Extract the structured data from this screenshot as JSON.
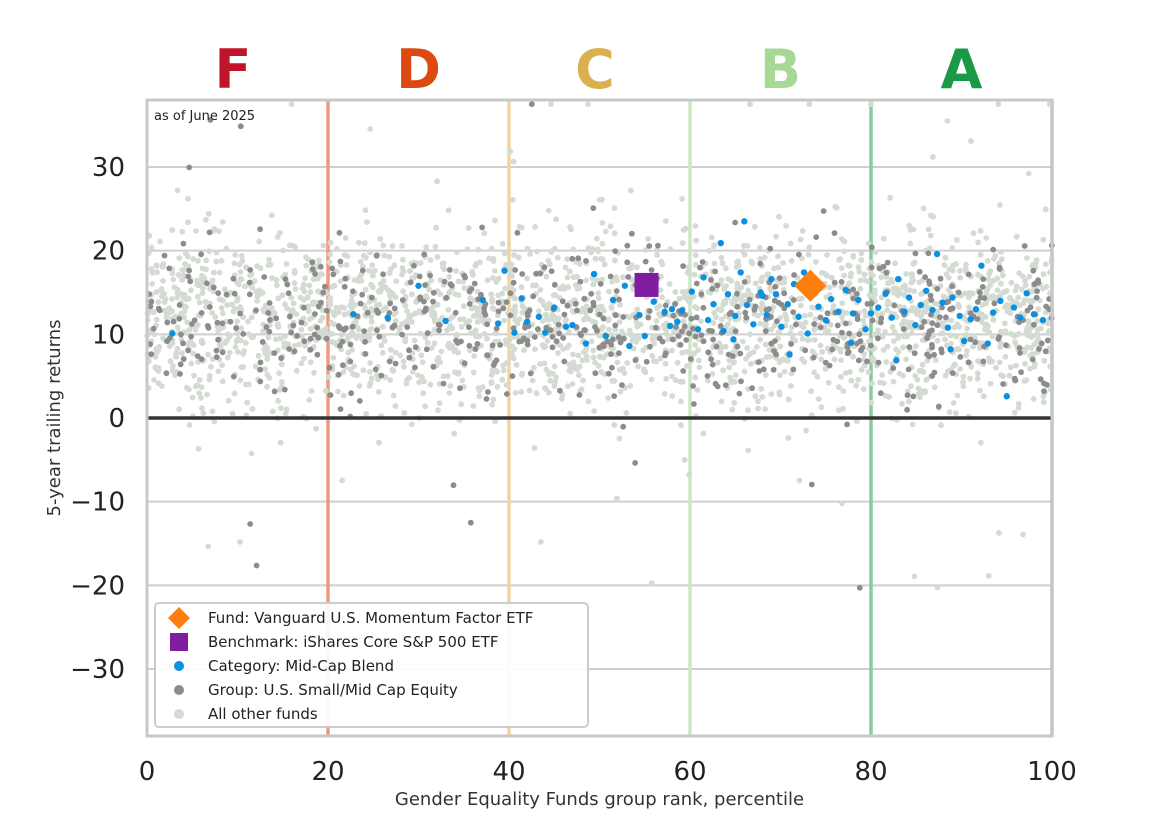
{
  "chart_data": {
    "type": "scatter",
    "annotation": "as of June 2025",
    "xlabel": "Gender Equality Funds group rank, percentile",
    "ylabel": "5-year trailing returns",
    "xlim": [
      0,
      100
    ],
    "ylim": [
      -38,
      38
    ],
    "x_ticks": [
      0,
      20,
      40,
      60,
      80,
      100
    ],
    "y_ticks": [
      30,
      20,
      10,
      0,
      -10,
      -20,
      -30
    ],
    "grid": "horizontal",
    "zero_line": 0,
    "grade_bands": [
      {
        "grade": "F",
        "center": 9.5,
        "boundary": 20,
        "color": "#c0142a",
        "line_color": "#ee9a80"
      },
      {
        "grade": "D",
        "center": 30,
        "boundary": 40,
        "color": "#dc4a12",
        "line_color": "#f0d5a3"
      },
      {
        "grade": "C",
        "center": 49.5,
        "boundary": 60,
        "color": "#dcb050",
        "line_color": "#cce8c4"
      },
      {
        "grade": "B",
        "center": 70,
        "boundary": 80,
        "color": "#a8d896",
        "line_color": "#88cc9c"
      },
      {
        "grade": "A",
        "center": 90,
        "boundary": 100,
        "color": "#1a9a46",
        "line_color": "#88cc9c"
      }
    ],
    "legend_position": "bottom-left",
    "series": [
      {
        "name": "Fund: Vanguard U.S. Momentum Factor ETF",
        "marker": "diamond",
        "color": "#ff7f0e",
        "points": [
          [
            73.3,
            15.8
          ]
        ]
      },
      {
        "name": "Benchmark: iShares Core S&P 500 ETF",
        "marker": "square",
        "color": "#7f1ca0",
        "points": [
          [
            55.2,
            15.9
          ]
        ]
      },
      {
        "name": "Category: Mid-Cap Blend",
        "marker": "dot",
        "color": "#0a90e0",
        "points": [
          [
            2.8,
            10.1
          ],
          [
            22.8,
            12.4
          ],
          [
            30.0,
            15.8
          ],
          [
            33.0,
            11.6
          ],
          [
            37.1,
            14.1
          ],
          [
            38.8,
            11.3
          ],
          [
            39.5,
            17.6
          ],
          [
            40.6,
            10.2
          ],
          [
            41.4,
            14.3
          ],
          [
            42.0,
            11.5
          ],
          [
            43.3,
            12.1
          ],
          [
            44.0,
            10.2
          ],
          [
            46.3,
            10.9
          ],
          [
            47.0,
            11.1
          ],
          [
            48.5,
            8.9
          ],
          [
            49.4,
            17.2
          ],
          [
            50.7,
            9.8
          ],
          [
            52.8,
            15.8
          ],
          [
            53.3,
            8.6
          ],
          [
            54.4,
            12.3
          ],
          [
            55.0,
            9.8
          ],
          [
            56.0,
            13.9
          ],
          [
            57.2,
            12.7
          ],
          [
            58.0,
            13.0
          ],
          [
            58.6,
            11.5
          ],
          [
            59.1,
            12.8
          ],
          [
            60.2,
            15.1
          ],
          [
            60.9,
            10.6
          ],
          [
            61.5,
            16.8
          ],
          [
            62.0,
            11.7
          ],
          [
            62.6,
            13.6
          ],
          [
            63.4,
            20.9
          ],
          [
            63.7,
            10.4
          ],
          [
            64.2,
            14.8
          ],
          [
            65.0,
            12.2
          ],
          [
            65.6,
            17.4
          ],
          [
            66.0,
            23.5
          ],
          [
            66.3,
            13.5
          ],
          [
            67.0,
            11.2
          ],
          [
            67.8,
            15.0
          ],
          [
            68.5,
            12.3
          ],
          [
            69.0,
            16.6
          ],
          [
            69.5,
            14.8
          ],
          [
            70.1,
            10.9
          ],
          [
            70.8,
            13.6
          ],
          [
            71.5,
            16.0
          ],
          [
            72.0,
            12.1
          ],
          [
            72.6,
            17.4
          ],
          [
            73.0,
            10.1
          ],
          [
            74.2,
            13.3
          ],
          [
            75.0,
            11.7
          ],
          [
            75.6,
            14.2
          ],
          [
            76.4,
            12.7
          ],
          [
            77.2,
            15.3
          ],
          [
            78.0,
            12.5
          ],
          [
            78.6,
            14.1
          ],
          [
            79.4,
            10.6
          ],
          [
            80.0,
            12.5
          ],
          [
            80.8,
            13.2
          ],
          [
            81.6,
            14.9
          ],
          [
            82.3,
            12.0
          ],
          [
            83.0,
            16.6
          ],
          [
            83.7,
            12.7
          ],
          [
            84.2,
            14.4
          ],
          [
            84.9,
            11.1
          ],
          [
            85.5,
            13.5
          ],
          [
            86.1,
            15.2
          ],
          [
            86.8,
            12.9
          ],
          [
            87.3,
            19.6
          ],
          [
            87.9,
            13.8
          ],
          [
            88.5,
            10.8
          ],
          [
            89.0,
            14.4
          ],
          [
            89.8,
            12.2
          ],
          [
            90.3,
            9.2
          ],
          [
            91.0,
            11.8
          ],
          [
            91.6,
            13.0
          ],
          [
            92.2,
            18.2
          ],
          [
            92.9,
            8.9
          ],
          [
            93.5,
            12.6
          ],
          [
            94.3,
            14.0
          ],
          [
            95.0,
            2.6
          ],
          [
            95.8,
            13.2
          ],
          [
            96.5,
            12.0
          ],
          [
            97.2,
            14.9
          ],
          [
            98.0,
            12.4
          ],
          [
            99.0,
            11.7
          ],
          [
            26.6,
            12.0
          ],
          [
            45.0,
            13.2
          ],
          [
            51.5,
            14.1
          ],
          [
            57.8,
            11.0
          ],
          [
            64.8,
            9.4
          ],
          [
            68.0,
            14.6
          ],
          [
            71.0,
            7.6
          ],
          [
            77.8,
            9.0
          ],
          [
            82.8,
            6.9
          ],
          [
            88.8,
            8.2
          ]
        ]
      }
    ],
    "background_series": [
      {
        "name": "Group: U.S. Small/Mid Cap Equity",
        "marker": "dot",
        "color": "#8c8c8c",
        "count": 620,
        "y_center": 11.5,
        "y_spread": 4.2
      },
      {
        "name": "All other funds",
        "marker": "dot",
        "color": "#d4dbd2",
        "count": 2400,
        "y_center": 12.0,
        "y_spread": 5.2
      }
    ]
  }
}
